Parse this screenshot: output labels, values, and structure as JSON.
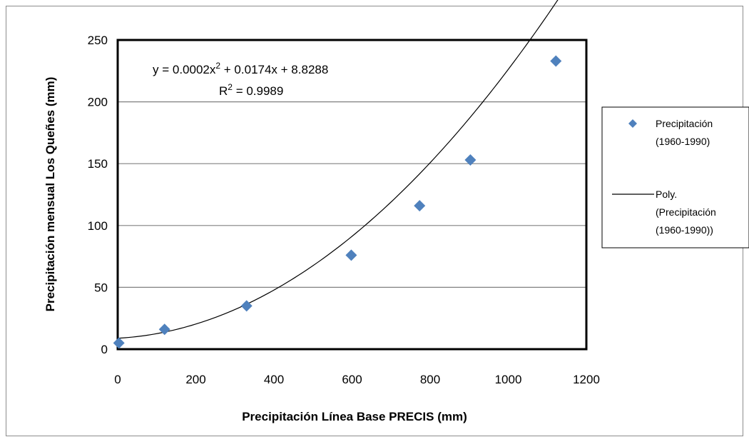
{
  "chart_data": {
    "type": "scatter",
    "xlabel": "Precipitación Línea  Base PRECIS (mm)",
    "ylabel": "Precipitación mensual Los Queñes (mm)",
    "xlim": [
      0,
      1200
    ],
    "ylim": [
      0,
      250
    ],
    "x_ticks": [
      "0",
      "200",
      "400",
      "600",
      "800",
      "1000",
      "1200"
    ],
    "y_ticks": [
      "0",
      "50",
      "100",
      "150",
      "200",
      "250"
    ],
    "grid": "horizontal",
    "legend_position": "right",
    "series": [
      {
        "name": "Precipitación (1960-1990)",
        "marker": "diamond",
        "color": "#4f81bd",
        "points": [
          {
            "x": 3,
            "y": 5
          },
          {
            "x": 120,
            "y": 16
          },
          {
            "x": 330,
            "y": 35
          },
          {
            "x": 598,
            "y": 76
          },
          {
            "x": 773,
            "y": 116
          },
          {
            "x": 903,
            "y": 153
          },
          {
            "x": 1122,
            "y": 233
          }
        ]
      },
      {
        "name": "Poly. (Precipitación (1960-1990))",
        "type": "trendline",
        "color": "#000000",
        "coefficients": {
          "a": 0.0002,
          "b": 0.0174,
          "c": 8.8288
        },
        "x_range": [
          0,
          1130
        ]
      }
    ],
    "annotations": {
      "equation_prefix": "y = 0.0002x",
      "equation_exp": "2",
      "equation_suffix": " + 0.0174x + 8.8288",
      "r2_prefix": "R",
      "r2_exp": "2",
      "r2_suffix": " = 0.9989"
    },
    "legend": {
      "entry1_line1": "Precipitación",
      "entry1_line2": "(1960-1990)",
      "entry2_line1": "Poly.",
      "entry2_line2": "(Precipitación",
      "entry2_line3": "(1960-1990))"
    }
  }
}
